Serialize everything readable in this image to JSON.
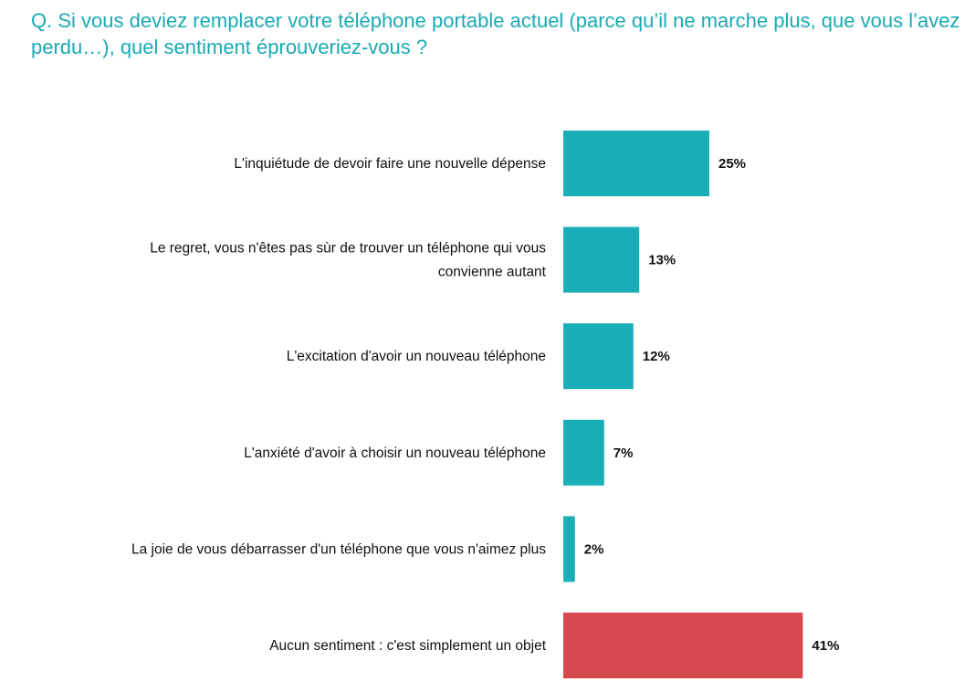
{
  "question": "Q. Si vous deviez remplacer votre téléphone portable actuel (parce qu’il ne marche plus, que vous l’avez perdu…), quel sentiment éprouveriez-vous ?",
  "colors": {
    "title": "#19aab5",
    "bar_default": "#1aafb8",
    "bar_highlight": "#d8484f",
    "text": "#111111"
  },
  "chart_data": {
    "type": "bar",
    "orientation": "horizontal",
    "categories": [
      [
        "L'inquiétude de devoir faire une nouvelle dépense"
      ],
      [
        "Le regret, vous n'êtes pas sùr de trouver un téléphone qui vous",
        "convienne autant"
      ],
      [
        "L'excitation d'avoir un nouveau téléphone"
      ],
      [
        "L'anxiété d'avoir à choisir un nouveau téléphone"
      ],
      [
        "La joie de vous débarrasser d'un téléphone que vous n'aimez plus"
      ],
      [
        "Aucun sentiment : c'est simplement un objet"
      ]
    ],
    "values": [
      25,
      13,
      12,
      7,
      2,
      41
    ],
    "value_labels": [
      "25%",
      "13%",
      "12%",
      "7%",
      "2%",
      "41%"
    ],
    "highlight": [
      false,
      false,
      false,
      false,
      false,
      true
    ],
    "unit": "%",
    "grid": false,
    "legend": "none"
  }
}
